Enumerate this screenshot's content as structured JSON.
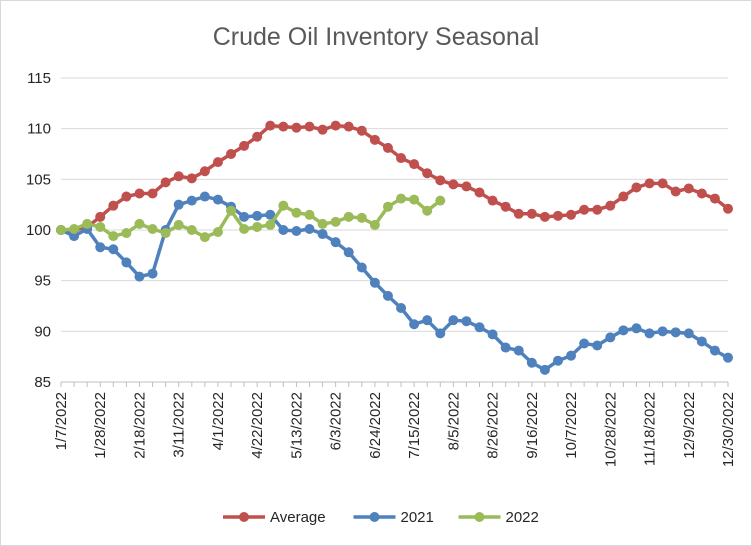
{
  "chart_data": {
    "type": "line",
    "title": "Crude Oil Inventory Seasonal",
    "xlabel": "",
    "ylabel": "",
    "ylim": [
      85,
      115
    ],
    "yticks": [
      85,
      90,
      95,
      100,
      105,
      110,
      115
    ],
    "grid": "horizontal",
    "legend_position": "bottom",
    "x": [
      "1/7/2022",
      "1/14/2022",
      "1/21/2022",
      "1/28/2022",
      "2/4/2022",
      "2/11/2022",
      "2/18/2022",
      "2/25/2022",
      "3/4/2022",
      "3/11/2022",
      "3/18/2022",
      "3/25/2022",
      "4/1/2022",
      "4/8/2022",
      "4/15/2022",
      "4/22/2022",
      "4/29/2022",
      "5/6/2022",
      "5/13/2022",
      "5/20/2022",
      "5/27/2022",
      "6/3/2022",
      "6/10/2022",
      "6/17/2022",
      "6/24/2022",
      "7/1/2022",
      "7/8/2022",
      "7/15/2022",
      "7/22/2022",
      "7/29/2022",
      "8/5/2022",
      "8/12/2022",
      "8/19/2022",
      "8/26/2022",
      "9/2/2022",
      "9/9/2022",
      "9/16/2022",
      "9/23/2022",
      "9/30/2022",
      "10/7/2022",
      "10/14/2022",
      "10/21/2022",
      "10/28/2022",
      "11/4/2022",
      "11/11/2022",
      "11/18/2022",
      "11/25/2022",
      "12/2/2022",
      "12/9/2022",
      "12/16/2022",
      "12/23/2022",
      "12/30/2022"
    ],
    "x_tick_labels": [
      "1/7/2022",
      "1/28/2022",
      "2/18/2022",
      "3/11/2022",
      "4/1/2022",
      "4/22/2022",
      "5/13/2022",
      "6/3/2022",
      "6/24/2022",
      "7/15/2022",
      "8/5/2022",
      "8/26/2022",
      "9/16/2022",
      "10/7/2022",
      "10/28/2022",
      "11/18/2022",
      "12/9/2022",
      "12/30/2022"
    ],
    "series": [
      {
        "name": "Average",
        "color": "#c0504d",
        "values": [
          100,
          100,
          100.3,
          101.3,
          102.4,
          103.3,
          103.6,
          103.6,
          104.7,
          105.3,
          105.1,
          105.8,
          106.7,
          107.5,
          108.3,
          109.2,
          110.3,
          110.2,
          110.1,
          110.2,
          109.9,
          110.3,
          110.2,
          109.8,
          108.9,
          108.1,
          107.1,
          106.5,
          105.6,
          104.9,
          104.5,
          104.3,
          103.7,
          102.9,
          102.3,
          101.6,
          101.6,
          101.3,
          101.4,
          101.5,
          102.0,
          102.0,
          102.4,
          103.3,
          104.2,
          104.6,
          104.6,
          103.8,
          104.1,
          103.6,
          103.1,
          102.1
        ]
      },
      {
        "name": "2021",
        "color": "#4f81bd",
        "values": [
          100,
          99.4,
          100.1,
          98.3,
          98.1,
          96.8,
          95.4,
          95.7,
          100.0,
          102.5,
          102.9,
          103.3,
          103.0,
          102.3,
          101.3,
          101.4,
          101.5,
          100.0,
          99.9,
          100.1,
          99.6,
          98.8,
          97.8,
          96.3,
          94.8,
          93.5,
          92.3,
          90.7,
          91.1,
          89.8,
          91.1,
          91.0,
          90.4,
          89.7,
          88.4,
          88.1,
          86.9,
          86.2,
          87.1,
          87.6,
          88.8,
          88.6,
          89.4,
          90.1,
          90.3,
          89.8,
          90.0,
          89.9,
          89.8,
          89.0,
          88.1,
          87.4
        ]
      },
      {
        "name": "2022",
        "color": "#9bbb59",
        "values": [
          100,
          100.1,
          100.6,
          100.3,
          99.4,
          99.7,
          100.6,
          100.1,
          99.7,
          100.5,
          100.0,
          99.3,
          99.8,
          101.9,
          100.1,
          100.3,
          100.5,
          102.4,
          101.7,
          101.5,
          100.6,
          100.8,
          101.3,
          101.2,
          100.5,
          102.3,
          103.1,
          103.0,
          101.9,
          102.9,
          null,
          null,
          null,
          null,
          null,
          null,
          null,
          null,
          null,
          null,
          null,
          null,
          null,
          null,
          null,
          null,
          null,
          null,
          null,
          null,
          null,
          null
        ]
      }
    ]
  }
}
